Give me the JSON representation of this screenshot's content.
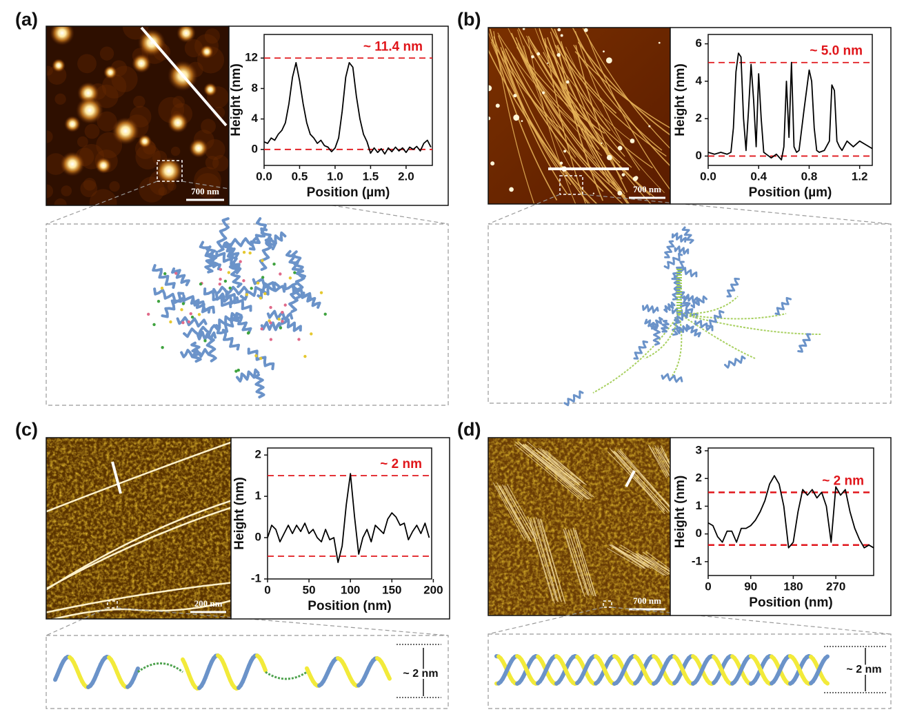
{
  "chart_data": [
    {
      "type": "line",
      "panel": "(a)",
      "scale_bar": "700 nm",
      "x_label": "Position (µm)",
      "y_label": "Height (nm)",
      "annotation": "~ 11.4 nm",
      "color": "#000000",
      "reference_color": "#e0161b",
      "reference_lines": [
        12,
        0
      ],
      "xlim": [
        0,
        2.37
      ],
      "ylim": [
        -2.1,
        15.1
      ],
      "xticks": [
        {
          "value": 0,
          "label": "0.0"
        },
        0.5,
        {
          "value": 1,
          "label": "1.0"
        },
        1.5,
        {
          "value": 2,
          "label": "2.0"
        }
      ],
      "yticks": [
        0,
        4,
        8,
        12
      ],
      "x": [
        0,
        0.05,
        0.1,
        0.15,
        0.2,
        0.25,
        0.3,
        0.35,
        0.4,
        0.45,
        0.5,
        0.55,
        0.6,
        0.65,
        0.7,
        0.75,
        0.8,
        0.85,
        0.9,
        0.95,
        1.0,
        1.05,
        1.1,
        1.15,
        1.2,
        1.25,
        1.3,
        1.35,
        1.4,
        1.45,
        1.5,
        1.55,
        1.6,
        1.65,
        1.7,
        1.75,
        1.8,
        1.85,
        1.9,
        1.95,
        2.0,
        2.05,
        2.1,
        2.15,
        2.2,
        2.25,
        2.3,
        2.35
      ],
      "values": [
        1.0,
        0.8,
        1.5,
        1.2,
        2.0,
        2.5,
        3.5,
        6,
        9.5,
        11.4,
        9,
        6,
        3.5,
        2,
        1.5,
        0.8,
        1.2,
        0.5,
        0.3,
        -0.3,
        0.2,
        1.5,
        5,
        9.5,
        11.4,
        10.8,
        7,
        4,
        2,
        1,
        -0.5,
        0.2,
        -0.4,
        0.1,
        -0.6,
        0.2,
        -0.3,
        0.3,
        -0.2,
        0.2,
        -0.4,
        0.3,
        0,
        0.4,
        -0.2,
        0.8,
        1.2,
        0.3
      ]
    },
    {
      "type": "line",
      "panel": "(b)",
      "scale_bar": "700 nm",
      "x_label": "Position (µm)",
      "y_label": "Height (nm)",
      "annotation": "~ 5.0 nm",
      "color": "#000000",
      "reference_color": "#e0161b",
      "reference_lines": [
        5,
        0
      ],
      "xlim": [
        0,
        1.3
      ],
      "ylim": [
        -0.5,
        6.5
      ],
      "xticks": [
        {
          "value": 0,
          "label": "0.0"
        },
        0.4,
        0.8,
        1.2
      ],
      "yticks": [
        0,
        2,
        4,
        6
      ],
      "x": [
        0,
        0.05,
        0.1,
        0.15,
        0.18,
        0.2,
        0.22,
        0.24,
        0.26,
        0.28,
        0.3,
        0.32,
        0.34,
        0.36,
        0.38,
        0.4,
        0.42,
        0.44,
        0.46,
        0.5,
        0.54,
        0.58,
        0.6,
        0.62,
        0.64,
        0.66,
        0.68,
        0.7,
        0.72,
        0.76,
        0.8,
        0.82,
        0.84,
        0.86,
        0.88,
        0.92,
        0.96,
        0.98,
        1.0,
        1.02,
        1.04,
        1.06,
        1.1,
        1.15,
        1.2,
        1.25,
        1.3
      ],
      "values": [
        0.2,
        0.1,
        0.2,
        0.1,
        0.2,
        1.5,
        4.5,
        5.5,
        5.3,
        2.0,
        0.3,
        2.5,
        4.9,
        3.0,
        0.5,
        4.4,
        2.0,
        0.2,
        0.1,
        -0.1,
        0.1,
        -0.2,
        0.5,
        4.0,
        1.0,
        5.0,
        0.5,
        0.2,
        0.3,
        2.5,
        4.6,
        4.0,
        1.5,
        0.3,
        0.2,
        0.3,
        0.8,
        3.8,
        3.5,
        0.8,
        0.5,
        0.3,
        0.8,
        0.5,
        0.8,
        0.6,
        0.4
      ]
    },
    {
      "type": "line",
      "panel": "(c)",
      "scale_bar": "200 nm",
      "x_label": "Position (nm)",
      "y_label": "Height (nm)",
      "annotation": "~ 2 nm",
      "dimension_label": "~ 2 nm",
      "color": "#000000",
      "reference_color": "#e0161b",
      "reference_lines": [
        1.5,
        -0.45
      ],
      "xlim": [
        0,
        198
      ],
      "ylim": [
        -1,
        2.17
      ],
      "xticks": [
        0,
        50,
        100,
        150,
        200
      ],
      "yticks": [
        -1,
        0,
        1,
        2
      ],
      "x": [
        0,
        5,
        10,
        15,
        20,
        25,
        30,
        35,
        40,
        45,
        50,
        55,
        60,
        65,
        70,
        75,
        80,
        85,
        90,
        95,
        100,
        105,
        110,
        115,
        120,
        125,
        130,
        135,
        140,
        145,
        150,
        155,
        160,
        165,
        170,
        175,
        180,
        185,
        190,
        195
      ],
      "values": [
        0,
        0.3,
        0.2,
        -0.1,
        0.1,
        0.3,
        0.1,
        0.3,
        0.15,
        0.35,
        0.1,
        0.2,
        0,
        -0.1,
        0.2,
        -0.05,
        0,
        -0.6,
        -0.2,
        0.8,
        1.55,
        0.5,
        -0.4,
        0,
        0.2,
        -0.1,
        0.3,
        0.2,
        0.1,
        0.45,
        0.6,
        0.5,
        0.3,
        0.35,
        -0.05,
        0.15,
        0.3,
        0.1,
        0.35,
        0
      ]
    },
    {
      "type": "line",
      "panel": "(d)",
      "scale_bar": "700 nm",
      "x_label": "Position (nm)",
      "y_label": "Height (nm)",
      "annotation": "~ 2 nm",
      "dimension_label": "~ 2 nm",
      "color": "#000000",
      "reference_color": "#e0161b",
      "reference_lines": [
        1.5,
        -0.4
      ],
      "xlim": [
        0,
        350
      ],
      "ylim": [
        -1.5,
        3.1
      ],
      "xticks": [
        0,
        90,
        180,
        270
      ],
      "yticks": [
        -1,
        0,
        1,
        2,
        3
      ],
      "x": [
        0,
        10,
        20,
        30,
        40,
        50,
        60,
        70,
        80,
        90,
        100,
        110,
        120,
        130,
        140,
        150,
        160,
        170,
        180,
        190,
        200,
        210,
        220,
        230,
        240,
        250,
        260,
        270,
        280,
        290,
        300,
        310,
        320,
        330,
        340,
        350
      ],
      "values": [
        0.4,
        0.3,
        -0.1,
        -0.3,
        0.1,
        0.1,
        -0.3,
        0.2,
        0.2,
        0.3,
        0.5,
        0.8,
        1.2,
        1.8,
        2.1,
        1.8,
        1.0,
        -0.5,
        -0.3,
        0.8,
        1.6,
        1.4,
        1.6,
        1.3,
        1.5,
        1.0,
        -0.3,
        1.7,
        1.4,
        1.6,
        0.8,
        0.2,
        -0.2,
        -0.5,
        -0.4,
        -0.5
      ]
    }
  ]
}
